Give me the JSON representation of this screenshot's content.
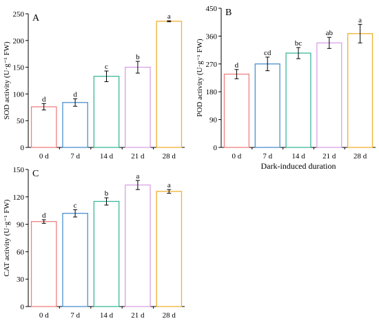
{
  "chart_data": [
    {
      "panel": "A",
      "type": "bar",
      "categories": [
        "0 d",
        "7 d",
        "14 d",
        "21 d",
        "28 d"
      ],
      "values": [
        76,
        84,
        133,
        150,
        236
      ],
      "errors": [
        6,
        7,
        10,
        11,
        1
      ],
      "letters": [
        "d",
        "d",
        "c",
        "b",
        "a"
      ],
      "colors": [
        "#f08080",
        "#4a90d0",
        "#3cb89a",
        "#d9a0e6",
        "#f0b030"
      ],
      "ylabel": "SOD activity (U·g⁻¹ FW)",
      "xlabel": "",
      "ylim": [
        0,
        250
      ],
      "yticks": [
        0,
        50,
        100,
        150,
        200,
        250
      ]
    },
    {
      "panel": "B",
      "type": "bar",
      "categories": [
        "0 d",
        "7 d",
        "14 d",
        "21 d",
        "28 d"
      ],
      "values": [
        237,
        270,
        305,
        338,
        368
      ],
      "errors": [
        15,
        22,
        18,
        18,
        30
      ],
      "letters": [
        "d",
        "cd",
        "bc",
        "ab",
        "a"
      ],
      "colors": [
        "#f08080",
        "#4a90d0",
        "#3cb89a",
        "#d9a0e6",
        "#f0b030"
      ],
      "ylabel": "POD activity (U·g⁻¹ FW)",
      "xlabel": "Dark-induced duration",
      "ylim": [
        0,
        450
      ],
      "yticks": [
        0,
        90,
        180,
        270,
        360,
        450
      ]
    },
    {
      "panel": "C",
      "type": "bar",
      "categories": [
        "0 d",
        "7 d",
        "14 d",
        "21 d",
        "28 d"
      ],
      "values": [
        93,
        102,
        115,
        133,
        126
      ],
      "errors": [
        2,
        4,
        4,
        5,
        2
      ],
      "letters": [
        "d",
        "c",
        "b",
        "a",
        "a"
      ],
      "colors": [
        "#f08080",
        "#4a90d0",
        "#3cb89a",
        "#d9a0e6",
        "#f0b030"
      ],
      "ylabel": "CAT activity (U·g⁻¹ FW)",
      "xlabel": "",
      "ylim": [
        0,
        150
      ],
      "yticks": [
        0,
        30,
        60,
        90,
        120,
        150
      ]
    }
  ]
}
